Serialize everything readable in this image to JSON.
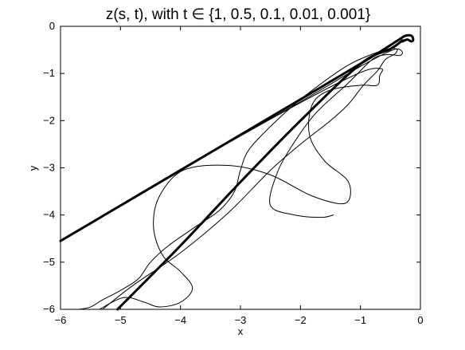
{
  "chart_data": {
    "type": "line",
    "title": "z(s, t), with t ∈ {1, 0.5, 0.1, 0.01, 0.001}",
    "xlabel": "x",
    "ylabel": "y",
    "xlim": [
      -6,
      0
    ],
    "ylim": [
      -6,
      0
    ],
    "x_ticks": [
      -6,
      -5,
      -4,
      -3,
      -2,
      -1,
      0
    ],
    "y_ticks": [
      0,
      -1,
      -2,
      -3,
      -4,
      -5,
      -6
    ],
    "x_tick_labels": [
      "−6",
      "−5",
      "−4",
      "−3",
      "−2",
      "−1",
      "0"
    ],
    "y_tick_labels": [
      "0",
      "−1",
      "−2",
      "−3",
      "−4",
      "−5",
      "−6"
    ],
    "grid": false,
    "legend": "none",
    "colors": {
      "curves": "#000000",
      "axes": "#000000",
      "background": "#ffffff"
    },
    "series": [
      {
        "style": "thick",
        "x": [
          -6.0,
          -4.0,
          -2.0,
          -0.85,
          -0.38,
          -0.25,
          -0.15,
          -0.12,
          -0.15,
          -0.22,
          -0.3
        ],
        "y": [
          -4.55,
          -3.05,
          -1.55,
          -0.68,
          -0.3,
          -0.2,
          -0.2,
          -0.28,
          -0.32,
          -0.28,
          -0.32
        ]
      },
      {
        "style": "thick",
        "x": [
          -5.05,
          -4.0,
          -3.0,
          -2.0,
          -1.0,
          -0.5,
          -0.3
        ],
        "y": [
          -6.0,
          -4.65,
          -3.3,
          -2.0,
          -0.8,
          -0.48,
          -0.3
        ]
      },
      {
        "style": "thin",
        "x": [
          -6.0,
          -4.0,
          -2.0,
          -1.0,
          -0.55,
          -0.38,
          -0.3,
          -0.35,
          -0.55,
          -0.8,
          -1.2,
          -1.75,
          -2.15,
          -2.4,
          -2.5,
          -2.1,
          -1.65,
          -1.45
        ],
        "y": [
          -4.55,
          -3.05,
          -1.6,
          -0.85,
          -0.55,
          -0.48,
          -0.55,
          -0.62,
          -0.6,
          -0.7,
          -1.2,
          -1.85,
          -2.55,
          -3.15,
          -3.8,
          -4.0,
          -4.05,
          -4.0
        ]
      },
      {
        "style": "thin",
        "x": [
          -5.3,
          -4.8,
          -4.0,
          -3.2,
          -2.5,
          -2.0,
          -1.5,
          -1.2,
          -0.95,
          -0.72,
          -0.58,
          -0.42,
          -0.4,
          -0.6,
          -1.2,
          -1.9,
          -2.4,
          -2.85,
          -3.0,
          -3.1,
          -3.35,
          -3.75,
          -4.2,
          -4.5,
          -4.7,
          -5.0,
          -5.3,
          -5.5,
          -5.7
        ],
        "y": [
          -6.0,
          -5.5,
          -4.8,
          -3.95,
          -3.05,
          -2.5,
          -2.0,
          -1.65,
          -1.25,
          -0.95,
          -0.7,
          -0.58,
          -0.48,
          -0.5,
          -0.82,
          -1.45,
          -2.0,
          -2.6,
          -3.05,
          -3.5,
          -3.9,
          -4.25,
          -4.65,
          -5.0,
          -5.35,
          -5.6,
          -5.8,
          -5.95,
          -6.0
        ]
      },
      {
        "style": "thin",
        "x": [
          -6.0,
          -4.0,
          -2.0,
          -1.0,
          -0.65,
          -0.68,
          -0.72,
          -1.0,
          -1.5,
          -1.8,
          -1.85,
          -1.6,
          -1.2,
          -1.25,
          -1.8,
          -2.5,
          -3.2,
          -3.95,
          -4.35,
          -4.45,
          -4.3,
          -4.0,
          -3.8,
          -4.0,
          -4.35,
          -4.6,
          -4.95,
          -5.35
        ],
        "y": [
          -4.55,
          -3.05,
          -1.62,
          -0.98,
          -0.9,
          -1.05,
          -1.25,
          -1.25,
          -1.35,
          -1.65,
          -2.3,
          -2.85,
          -3.3,
          -3.75,
          -3.6,
          -3.15,
          -2.95,
          -3.05,
          -3.6,
          -4.25,
          -4.85,
          -5.2,
          -5.55,
          -5.85,
          -5.95,
          -5.85,
          -5.75,
          -6.0
        ]
      }
    ]
  }
}
